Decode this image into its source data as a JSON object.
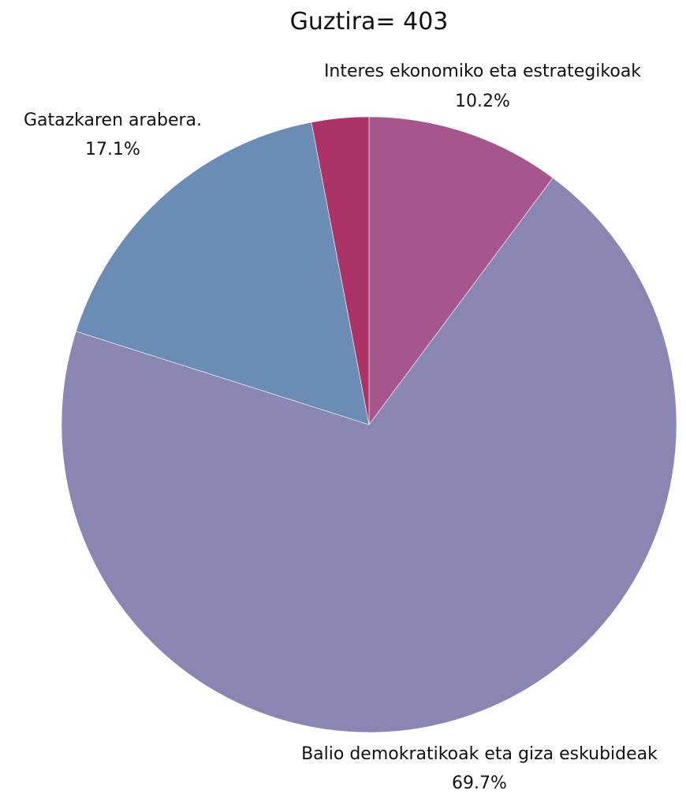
{
  "chart_data": {
    "type": "pie",
    "title": "Guztira= 403",
    "start_angle_deg": 0,
    "direction": "clockwise",
    "slices": [
      {
        "label": "Interes ekonomiko eta estrategikoak",
        "percent": 10.2,
        "percent_label": "10.2%",
        "color": "#a6568c",
        "show_label": true
      },
      {
        "label": "Balio demokratikoak eta giza eskubideak",
        "percent": 69.7,
        "percent_label": "69.7%",
        "color": "#8a86b3",
        "show_label": true
      },
      {
        "label": "Gatazkaren arabera.",
        "percent": 17.1,
        "percent_label": "17.1%",
        "color": "#6b8cb4",
        "show_label": true
      },
      {
        "label": "",
        "percent": 3.0,
        "percent_label": "",
        "color": "#ad3268",
        "show_label": false
      }
    ]
  }
}
